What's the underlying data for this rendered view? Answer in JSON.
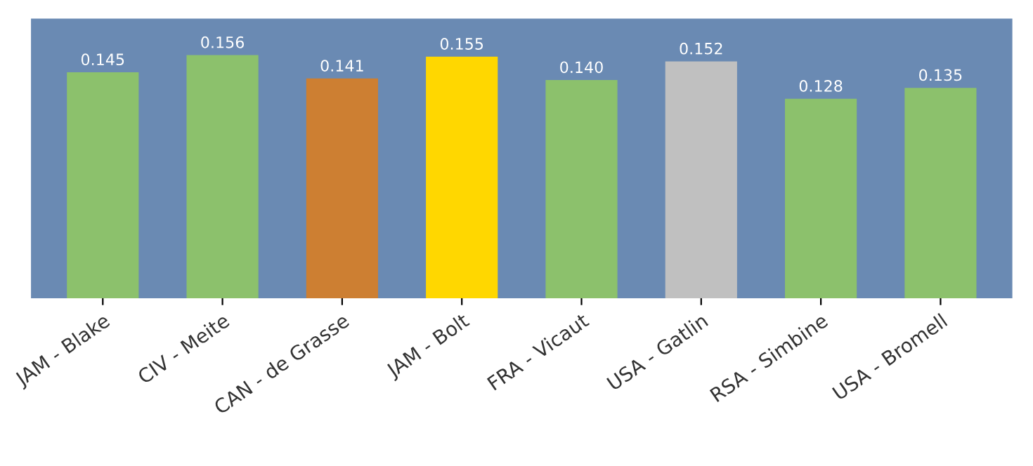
{
  "chart_data": {
    "type": "bar",
    "categories": [
      "JAM - Blake",
      "CIV - Meite",
      "CAN - de Grasse",
      "JAM - Bolt",
      "FRA - Vicaut",
      "USA - Gatlin",
      "RSA - Simbine",
      "USA - Bromell"
    ],
    "values": [
      0.145,
      0.156,
      0.141,
      0.155,
      0.14,
      0.152,
      0.128,
      0.135
    ],
    "colors": [
      "#8cc16c",
      "#8cc16c",
      "#cd7f32",
      "#ffd700",
      "#8cc16c",
      "#c0c0c0",
      "#8cc16c",
      "#8cc16c"
    ],
    "value_labels": [
      "0.145",
      "0.156",
      "0.141",
      "0.155",
      "0.140",
      "0.152",
      "0.128",
      "0.135"
    ],
    "grid": false,
    "legend": false
  }
}
